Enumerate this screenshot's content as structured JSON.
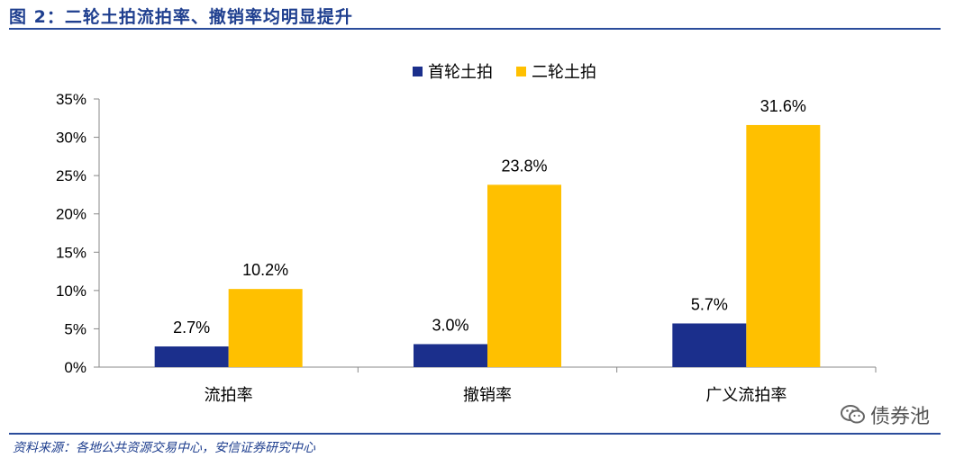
{
  "header": {
    "title": "图 2：二轮土拍流拍率、撤销率均明显提升"
  },
  "footer": {
    "source": "资料来源：各地公共资源交易中心，安信证券研究中心"
  },
  "watermark": {
    "text": "债券池",
    "icon": "wechat-icon"
  },
  "colors": {
    "series1": "#1b2f8c",
    "series2": "#ffc000",
    "accent": "#2b4c9b"
  },
  "chart_data": {
    "type": "bar",
    "categories": [
      "流拍率",
      "撤销率",
      "广义流拍率"
    ],
    "series": [
      {
        "name": "首轮土拍",
        "values": [
          2.7,
          3.0,
          5.7
        ],
        "labels": [
          "2.7%",
          "3.0%",
          "5.7%"
        ]
      },
      {
        "name": "二轮土拍",
        "values": [
          10.2,
          23.8,
          31.6
        ],
        "labels": [
          "10.2%",
          "23.8%",
          "31.6%"
        ]
      }
    ],
    "ylim": [
      0,
      35
    ],
    "yticks": [
      "0%",
      "5%",
      "10%",
      "15%",
      "20%",
      "25%",
      "30%",
      "35%"
    ],
    "legend": "top-center",
    "grid": false
  }
}
